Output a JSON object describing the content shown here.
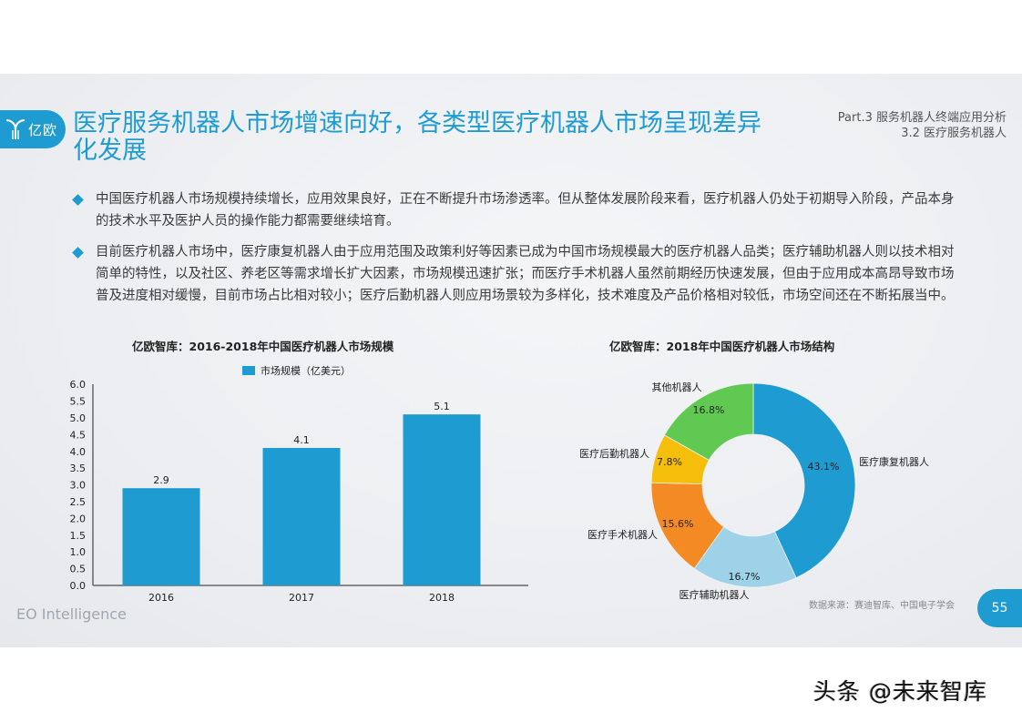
{
  "header": {
    "logo_text": "亿欧",
    "title": "医疗服务机器人市场增速向好，各类型医疗机器人市场呈现差异化发展",
    "part_line1": "Part.3 服务机器人终端应用分析",
    "part_line2": "3.2 医疗服务机器人"
  },
  "bullets": [
    "中国医疗机器人市场规模持续增长，应用效果良好，正在不断提升市场渗透率。但从整体发展阶段来看，医疗机器人仍处于初期导入阶段，产品本身的技术水平及医护人员的操作能力都需要继续培育。",
    "目前医疗机器人市场中，医疗康复机器人由于应用范围及政策利好等因素已成为中国市场规模最大的医疗机器人品类；医疗辅助机器人则以技术相对简单的特性，以及社区、养老区等需求增长扩大因素，市场规模迅速扩张；而医疗手术机器人虽然前期经历快速发展，但由于应用成本高昂导致市场普及进度相对缓慢，目前市场占比相对较小；医疗后勤机器人则应用场景较为多样化，技术难度及产品价格相对较低，市场空间还在不断拓展当中。"
  ],
  "footer": {
    "brand": "EO Intelligence",
    "source": "数据来源：赛迪智库、中国电子学会",
    "page_number": "55",
    "watermark": "头条 @未来智库"
  },
  "colors": {
    "accent": "#1e9cd2",
    "bar": "#1e9cd2",
    "pie_rehab": "#1e9cd2",
    "pie_assist": "#9dd2e8",
    "pie_surgery": "#f48a24",
    "pie_logistics": "#f5be0b",
    "pie_other": "#5fc951"
  },
  "chart_data": [
    {
      "type": "bar",
      "title": "亿欧智库：2016-2018年中国医疗机器人市场规模",
      "categories": [
        "2016",
        "2017",
        "2018"
      ],
      "series": [
        {
          "name": "市场规模（亿美元）",
          "values": [
            2.9,
            4.1,
            5.1
          ]
        }
      ],
      "data_labels": [
        "2.9",
        "4.1",
        "5.1"
      ],
      "xlabel": "",
      "ylabel": "",
      "ylim": [
        0,
        6.0
      ],
      "yticks": [
        "0.0",
        "0.5",
        "1.0",
        "1.5",
        "2.0",
        "2.5",
        "3.0",
        "3.5",
        "4.0",
        "4.5",
        "5.0",
        "5.5",
        "6.0"
      ],
      "legend_position": "top",
      "grid": false
    },
    {
      "type": "pie",
      "subtype": "donut",
      "title": "亿欧智库：2018年中国医疗机器人市场结构",
      "labels": [
        "医疗康复机器人",
        "医疗辅助机器人",
        "医疗手术机器人",
        "医疗后勤机器人",
        "其他机器人"
      ],
      "values": [
        43.1,
        16.7,
        15.6,
        7.8,
        16.8
      ],
      "value_labels": [
        "43.1%",
        "16.7%",
        "15.6%",
        "7.8%",
        "16.8%"
      ],
      "start_angle": "12 o'clock, clockwise"
    }
  ]
}
